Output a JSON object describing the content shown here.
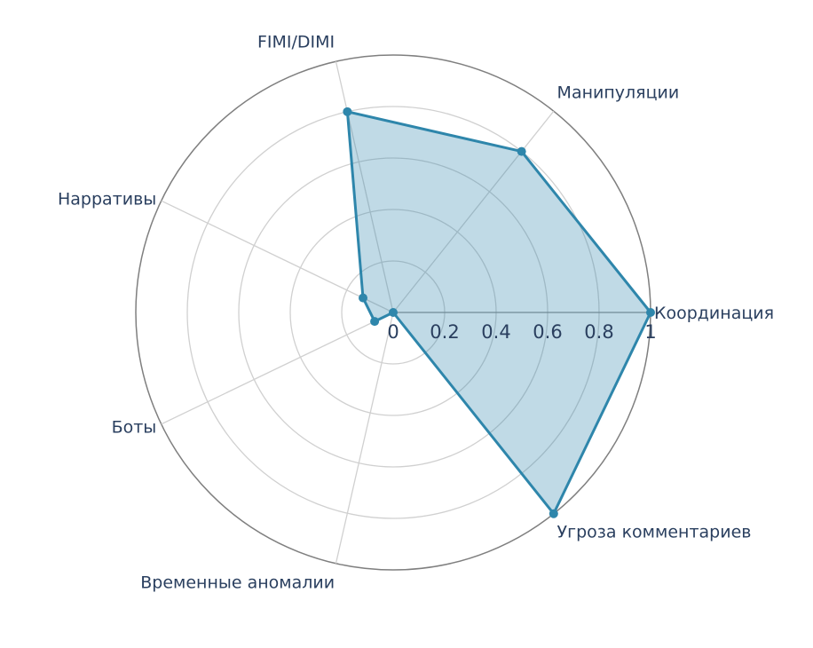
{
  "chart_data": {
    "type": "radar",
    "title": "",
    "categories": [
      "Координация",
      "Манипуляции",
      "FIMI/DIMI",
      "Нарративы",
      "Боты",
      "Временные аномалии",
      "Угроза комментариев"
    ],
    "series": [
      {
        "values": [
          1.0,
          0.8,
          0.8,
          0.13,
          0.08,
          0.0,
          1.0
        ],
        "color": "#2e86ab",
        "fill": "rgba(46,134,171,0.3)"
      }
    ],
    "radial_range": [
      0,
      1
    ],
    "radial_ticks": [
      "0",
      "0.2",
      "0.4",
      "0.6",
      "0.8",
      "1"
    ],
    "radial_tick_values": [
      0,
      0.2,
      0.4,
      0.6,
      0.8,
      1.0
    ],
    "grid": true,
    "legend": false
  }
}
